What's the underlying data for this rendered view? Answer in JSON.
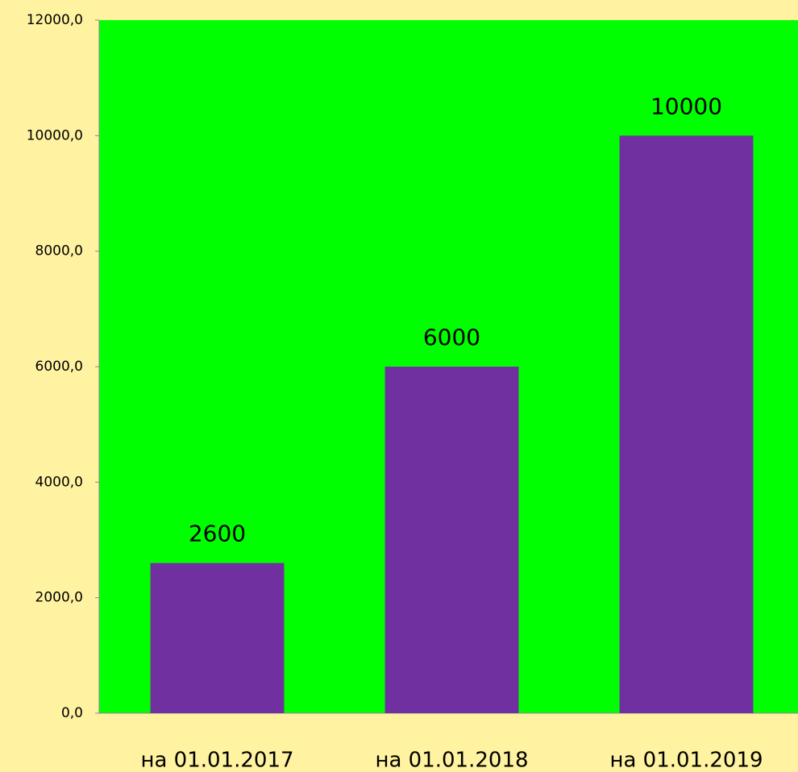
{
  "chart_data": {
    "type": "bar",
    "categories": [
      "на 01.01.2017",
      "на 01.01.2018",
      "на 01.01.2019"
    ],
    "values": [
      2600,
      6000,
      10000
    ],
    "color": "#7030a0",
    "plot_background": "#00ff00",
    "background": "#fff2a0",
    "ylim": [
      0,
      12000
    ],
    "yticks": [
      {
        "value": 0,
        "label": "0,0"
      },
      {
        "value": 2000,
        "label": "2000,0"
      },
      {
        "value": 4000,
        "label": "4000,0"
      },
      {
        "value": 6000,
        "label": "6000,0"
      },
      {
        "value": 8000,
        "label": "8000,0"
      },
      {
        "value": 10000,
        "label": "10000,0"
      },
      {
        "value": 12000,
        "label": "12000,0"
      }
    ],
    "grid": false
  }
}
